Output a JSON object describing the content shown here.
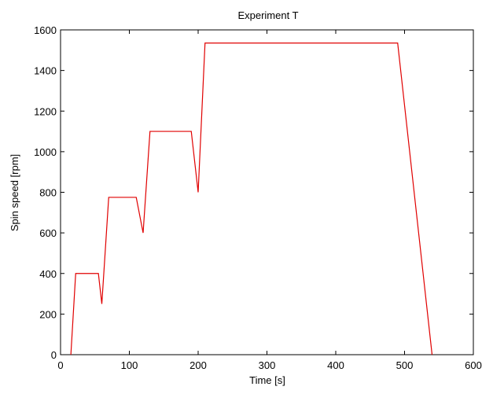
{
  "chart_data": {
    "type": "line",
    "title": "Experiment T",
    "xlabel": "Time [s]",
    "ylabel": "Spin speed [rpm]",
    "xlim": [
      0,
      600
    ],
    "ylim": [
      0,
      1600
    ],
    "xticks": [
      0,
      100,
      200,
      300,
      400,
      500,
      600
    ],
    "yticks": [
      0,
      200,
      400,
      600,
      800,
      1000,
      1200,
      1400,
      1600
    ],
    "grid": false,
    "legend": "none",
    "series": [
      {
        "color": "#e00000",
        "x": [
          15,
          22,
          55,
          60,
          70,
          110,
          120,
          130,
          190,
          200,
          210,
          490,
          540
        ],
        "y": [
          0,
          400,
          400,
          250,
          775,
          775,
          600,
          1100,
          1100,
          800,
          1535,
          1535,
          0
        ]
      }
    ]
  }
}
